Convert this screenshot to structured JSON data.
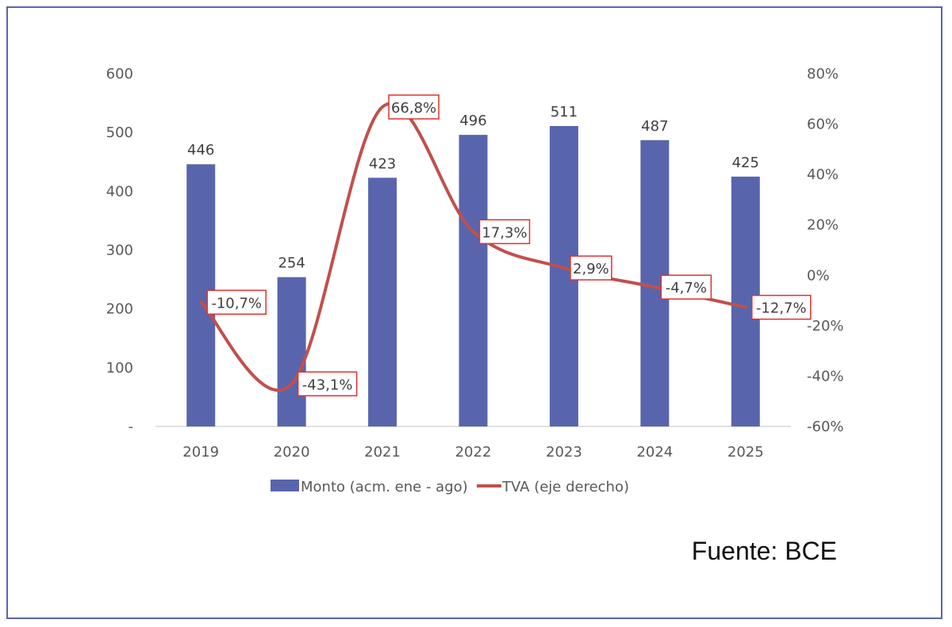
{
  "chart_data": {
    "type": "bar",
    "categories": [
      "2019",
      "2020",
      "2021",
      "2022",
      "2023",
      "2024",
      "2025"
    ],
    "series": [
      {
        "name": "Monto (acm. ene - ago)",
        "type": "bar",
        "axis": "left",
        "values": [
          446,
          254,
          423,
          496,
          511,
          487,
          425
        ],
        "labels": [
          "446",
          "254",
          "423",
          "496",
          "511",
          "487",
          "425"
        ],
        "color": "#5865ad"
      },
      {
        "name": "TVA (eje derecho)",
        "type": "line",
        "axis": "right",
        "values": [
          -10.7,
          -43.1,
          66.8,
          17.3,
          2.9,
          -4.7,
          -12.7
        ],
        "labels": [
          "-10,7%",
          "-43,1%",
          "66,8%",
          "17,3%",
          "2,9%",
          "-4,7%",
          "-12,7%"
        ],
        "color": "#c0504d"
      }
    ],
    "y_left": {
      "ylim": [
        0,
        600
      ],
      "ticks": [
        0,
        100,
        200,
        300,
        400,
        500,
        600
      ],
      "tick_labels": [
        "-",
        "100",
        "200",
        "300",
        "400",
        "500",
        "600"
      ]
    },
    "y_right": {
      "ylim": [
        -60,
        80
      ],
      "ticks": [
        -60,
        -40,
        -20,
        0,
        20,
        40,
        60,
        80
      ],
      "tick_labels": [
        "-60%",
        "-40%",
        "-20%",
        "0%",
        "20%",
        "40%",
        "60%",
        "80%"
      ]
    },
    "legend": "bottom",
    "grid": false,
    "label_border_color": "#e03030"
  },
  "source": "Fuente: BCE"
}
